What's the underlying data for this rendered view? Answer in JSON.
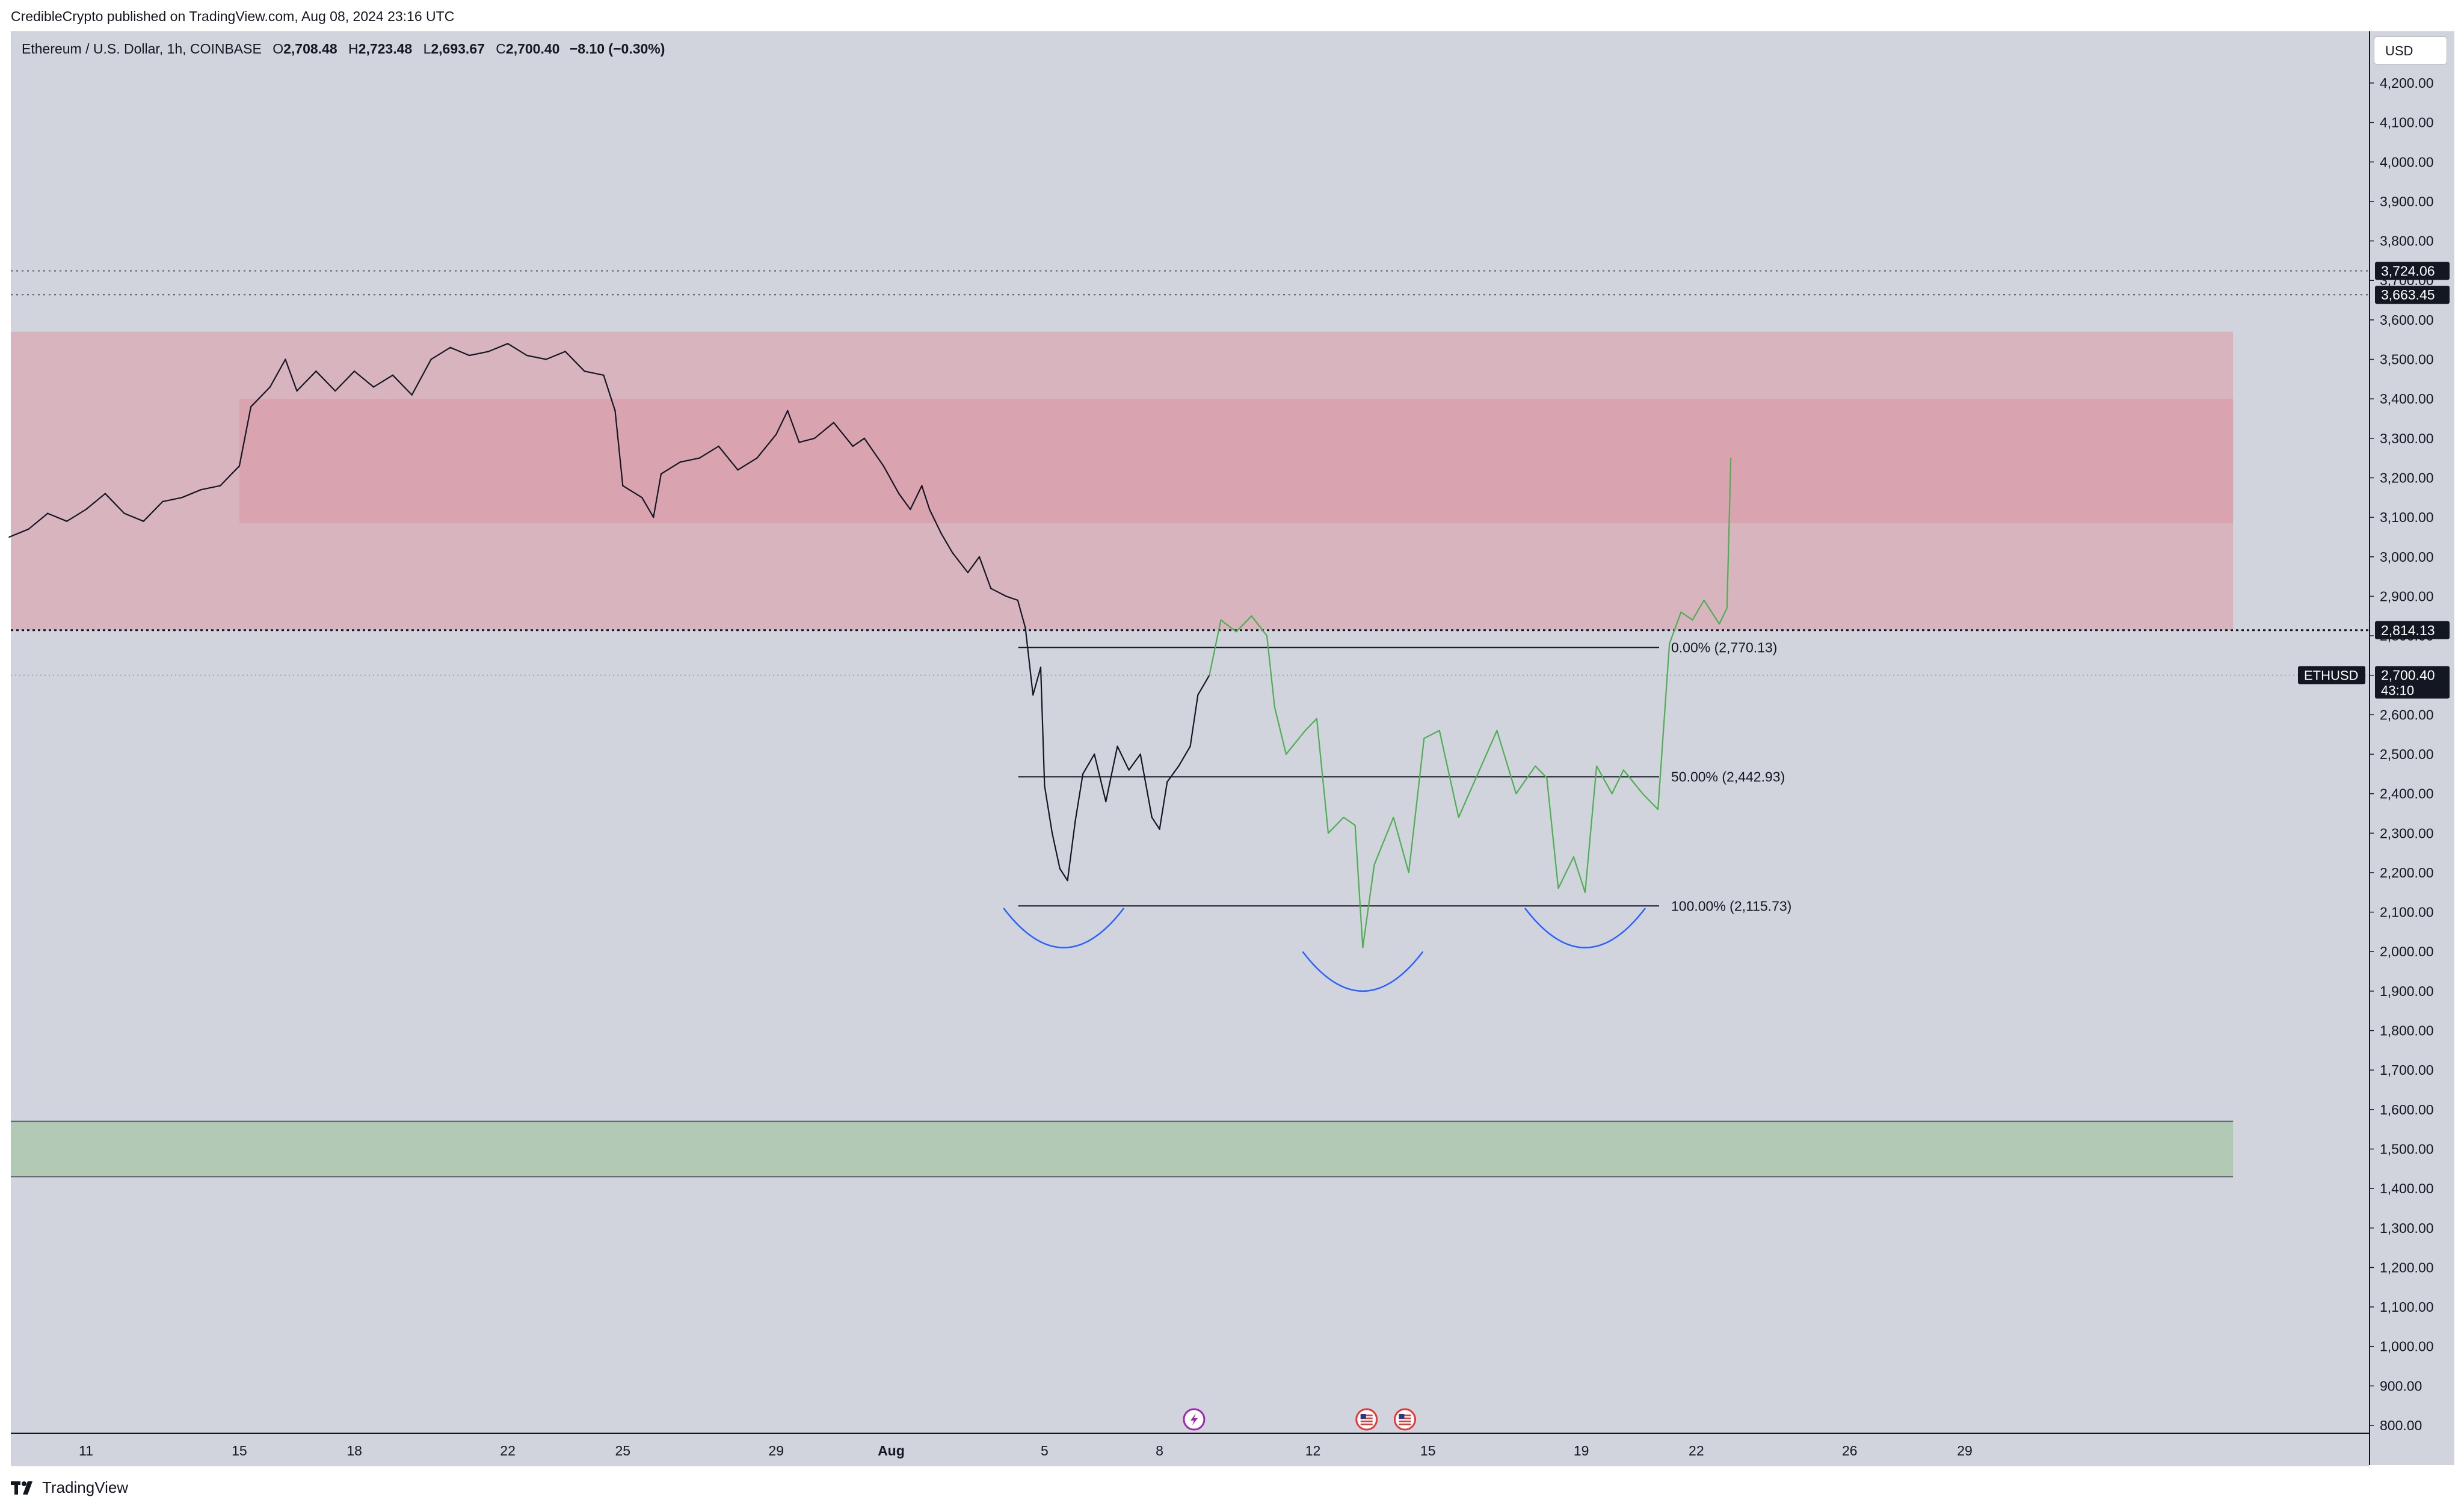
{
  "publisher_line": "CredibleCrypto published on TradingView.com, Aug 08, 2024 23:16 UTC",
  "legend": {
    "symbol": "Ethereum / U.S. Dollar, 1h, COINBASE",
    "open_label": "O",
    "open": "2,708.48",
    "high_label": "H",
    "high": "2,723.48",
    "low_label": "L",
    "low": "2,693.67",
    "close_label": "C",
    "close": "2,700.40",
    "change": "−8.10 (−0.30%)"
  },
  "currency_button": "USD",
  "footer": {
    "logo_text": "TradingView"
  },
  "chart_data": {
    "type": "line",
    "title": "Ethereum / U.S. Dollar, 1h, COINBASE",
    "ylim": [
      760,
      4330
    ],
    "y_ticks": [
      800,
      900,
      1000,
      1100,
      1200,
      1300,
      1400,
      1500,
      1600,
      1700,
      1800,
      1900,
      2000,
      2100,
      2200,
      2300,
      2400,
      2500,
      2600,
      2700,
      2800,
      2900,
      3000,
      3100,
      3200,
      3300,
      3400,
      3500,
      3600,
      3700,
      3800,
      3900,
      4000,
      4100,
      4200
    ],
    "y_tick_labels": [
      "800.00",
      "900.00",
      "1,000.00",
      "1,100.00",
      "1,200.00",
      "1,300.00",
      "1,400.00",
      "1,500.00",
      "1,600.00",
      "1,700.00",
      "1,800.00",
      "1,900.00",
      "2,000.00",
      "2,100.00",
      "2,200.00",
      "2,300.00",
      "2,400.00",
      "2,500.00",
      "2,600.00",
      "2,700.00",
      "2,800.00",
      "2,900.00",
      "3,000.00",
      "3,100.00",
      "3,200.00",
      "3,300.00",
      "3,400.00",
      "3,500.00",
      "3,600.00",
      "3,700.00",
      "3,800.00",
      "3,900.00",
      "4,000.00",
      "4,100.00",
      "4,200.00"
    ],
    "x_ticks": [
      {
        "label": "11",
        "day": 11
      },
      {
        "label": "15",
        "day": 15
      },
      {
        "label": "18",
        "day": 18
      },
      {
        "label": "22",
        "day": 22
      },
      {
        "label": "25",
        "day": 25
      },
      {
        "label": "29",
        "day": 29
      },
      {
        "label": "Aug",
        "day": 32
      },
      {
        "label": "5",
        "day": 36
      },
      {
        "label": "8",
        "day": 39
      },
      {
        "label": "12",
        "day": 43
      },
      {
        "label": "15",
        "day": 46
      },
      {
        "label": "19",
        "day": 50
      },
      {
        "label": "22",
        "day": 53
      },
      {
        "label": "26",
        "day": 57
      },
      {
        "label": "29",
        "day": 60
      }
    ],
    "price_series": {
      "name": "ETHUSD",
      "color": "#131722",
      "points": [
        [
          9.0,
          3050
        ],
        [
          9.5,
          3070
        ],
        [
          10.0,
          3110
        ],
        [
          10.5,
          3090
        ],
        [
          11.0,
          3120
        ],
        [
          11.5,
          3160
        ],
        [
          12.0,
          3110
        ],
        [
          12.5,
          3090
        ],
        [
          13.0,
          3140
        ],
        [
          13.5,
          3150
        ],
        [
          14.0,
          3170
        ],
        [
          14.5,
          3180
        ],
        [
          15.0,
          3230
        ],
        [
          15.3,
          3380
        ],
        [
          15.8,
          3430
        ],
        [
          16.2,
          3500
        ],
        [
          16.5,
          3420
        ],
        [
          17.0,
          3470
        ],
        [
          17.5,
          3420
        ],
        [
          18.0,
          3470
        ],
        [
          18.5,
          3430
        ],
        [
          19.0,
          3460
        ],
        [
          19.5,
          3410
        ],
        [
          20.0,
          3500
        ],
        [
          20.5,
          3530
        ],
        [
          21.0,
          3510
        ],
        [
          21.5,
          3520
        ],
        [
          22.0,
          3540
        ],
        [
          22.5,
          3510
        ],
        [
          23.0,
          3500
        ],
        [
          23.5,
          3520
        ],
        [
          24.0,
          3470
        ],
        [
          24.5,
          3460
        ],
        [
          24.8,
          3370
        ],
        [
          25.0,
          3180
        ],
        [
          25.5,
          3150
        ],
        [
          25.8,
          3100
        ],
        [
          26.0,
          3210
        ],
        [
          26.5,
          3240
        ],
        [
          27.0,
          3250
        ],
        [
          27.5,
          3280
        ],
        [
          28.0,
          3220
        ],
        [
          28.5,
          3250
        ],
        [
          29.0,
          3310
        ],
        [
          29.3,
          3370
        ],
        [
          29.6,
          3290
        ],
        [
          30.0,
          3300
        ],
        [
          30.5,
          3340
        ],
        [
          31.0,
          3280
        ],
        [
          31.3,
          3300
        ],
        [
          31.8,
          3230
        ],
        [
          32.2,
          3160
        ],
        [
          32.5,
          3120
        ],
        [
          32.8,
          3180
        ],
        [
          33.0,
          3120
        ],
        [
          33.3,
          3060
        ],
        [
          33.6,
          3010
        ],
        [
          34.0,
          2960
        ],
        [
          34.3,
          3000
        ],
        [
          34.6,
          2920
        ],
        [
          35.0,
          2900
        ],
        [
          35.3,
          2890
        ],
        [
          35.5,
          2820
        ],
        [
          35.7,
          2650
        ],
        [
          35.9,
          2720
        ],
        [
          36.0,
          2420
        ],
        [
          36.2,
          2300
        ],
        [
          36.4,
          2210
        ],
        [
          36.6,
          2180
        ],
        [
          36.8,
          2330
        ],
        [
          37.0,
          2450
        ],
        [
          37.3,
          2500
        ],
        [
          37.6,
          2380
        ],
        [
          37.9,
          2520
        ],
        [
          38.2,
          2460
        ],
        [
          38.5,
          2500
        ],
        [
          38.8,
          2340
        ],
        [
          39.0,
          2310
        ],
        [
          39.2,
          2430
        ],
        [
          39.5,
          2470
        ],
        [
          39.8,
          2520
        ],
        [
          40.0,
          2650
        ],
        [
          40.3,
          2700
        ]
      ]
    },
    "projection_path": {
      "color": "#4caf50",
      "points": [
        [
          40.3,
          2700
        ],
        [
          40.6,
          2840
        ],
        [
          41.0,
          2810
        ],
        [
          41.4,
          2850
        ],
        [
          41.8,
          2800
        ],
        [
          42.0,
          2620
        ],
        [
          42.3,
          2500
        ],
        [
          42.8,
          2560
        ],
        [
          43.1,
          2590
        ],
        [
          43.4,
          2300
        ],
        [
          43.8,
          2340
        ],
        [
          44.1,
          2320
        ],
        [
          44.3,
          2010
        ],
        [
          44.6,
          2220
        ],
        [
          45.1,
          2340
        ],
        [
          45.5,
          2200
        ],
        [
          45.9,
          2540
        ],
        [
          46.3,
          2560
        ],
        [
          46.8,
          2340
        ],
        [
          47.3,
          2450
        ],
        [
          47.8,
          2560
        ],
        [
          48.3,
          2400
        ],
        [
          48.8,
          2470
        ],
        [
          49.1,
          2440
        ],
        [
          49.4,
          2160
        ],
        [
          49.8,
          2240
        ],
        [
          50.1,
          2150
        ],
        [
          50.4,
          2470
        ],
        [
          50.8,
          2400
        ],
        [
          51.1,
          2460
        ],
        [
          51.6,
          2400
        ],
        [
          52.0,
          2360
        ],
        [
          52.3,
          2780
        ],
        [
          52.6,
          2860
        ],
        [
          52.9,
          2840
        ],
        [
          53.2,
          2890
        ],
        [
          53.6,
          2830
        ],
        [
          53.8,
          2870
        ],
        [
          53.9,
          3250
        ]
      ]
    },
    "fibonacci": {
      "x_range": [
        35.0,
        52.5
      ],
      "levels": [
        {
          "label": "0.00% (2,770.13)",
          "price": 2770.13
        },
        {
          "label": "50.00% (2,442.93)",
          "price": 2442.93
        },
        {
          "label": "100.00% (2,115.73)",
          "price": 2115.73
        }
      ]
    },
    "zones": [
      {
        "name": "supply-zone-outer",
        "price_range": [
          2814.13,
          3570
        ],
        "x_range": [
          9.0,
          67.0
        ],
        "color": "#d8b4be"
      },
      {
        "name": "supply-zone-inner",
        "price_range": [
          3085,
          3400
        ],
        "x_range": [
          15.0,
          67.0
        ],
        "color": "#d9a4b0"
      },
      {
        "name": "demand-zone",
        "price_range": [
          1430,
          1570
        ],
        "x_range": [
          9.0,
          67.0
        ],
        "color": "#b2c9b5"
      }
    ],
    "horizontal_lines": [
      {
        "price": 3724.06,
        "style": "dotted",
        "label": "3,724.06"
      },
      {
        "price": 3663.45,
        "style": "dotted",
        "label": "3,663.45"
      },
      {
        "price": 2814.13,
        "style": "dotted-bold",
        "label": "2,814.13"
      },
      {
        "price": 2700.4,
        "style": "dotted-thin",
        "label": "2,700.40",
        "countdown": "43:10",
        "symbol_tag": "ETHUSD"
      }
    ],
    "arcs": [
      {
        "center_day": 36.5,
        "price_top": 2110,
        "price_bottom": 2010,
        "color": "#2962ff"
      },
      {
        "center_day": 44.3,
        "price_top": 2000,
        "price_bottom": 1900,
        "color": "#2962ff"
      },
      {
        "center_day": 50.1,
        "price_top": 2110,
        "price_bottom": 2010,
        "color": "#2962ff"
      }
    ],
    "event_markers": [
      {
        "day": 39.9,
        "type": "earnings",
        "icon": "lightning-icon",
        "color": "#9c27b0"
      },
      {
        "day": 44.4,
        "type": "economic",
        "icon": "us-flag-icon",
        "color": "#e53935"
      },
      {
        "day": 45.4,
        "type": "economic",
        "icon": "us-flag-icon",
        "color": "#e53935"
      }
    ]
  }
}
